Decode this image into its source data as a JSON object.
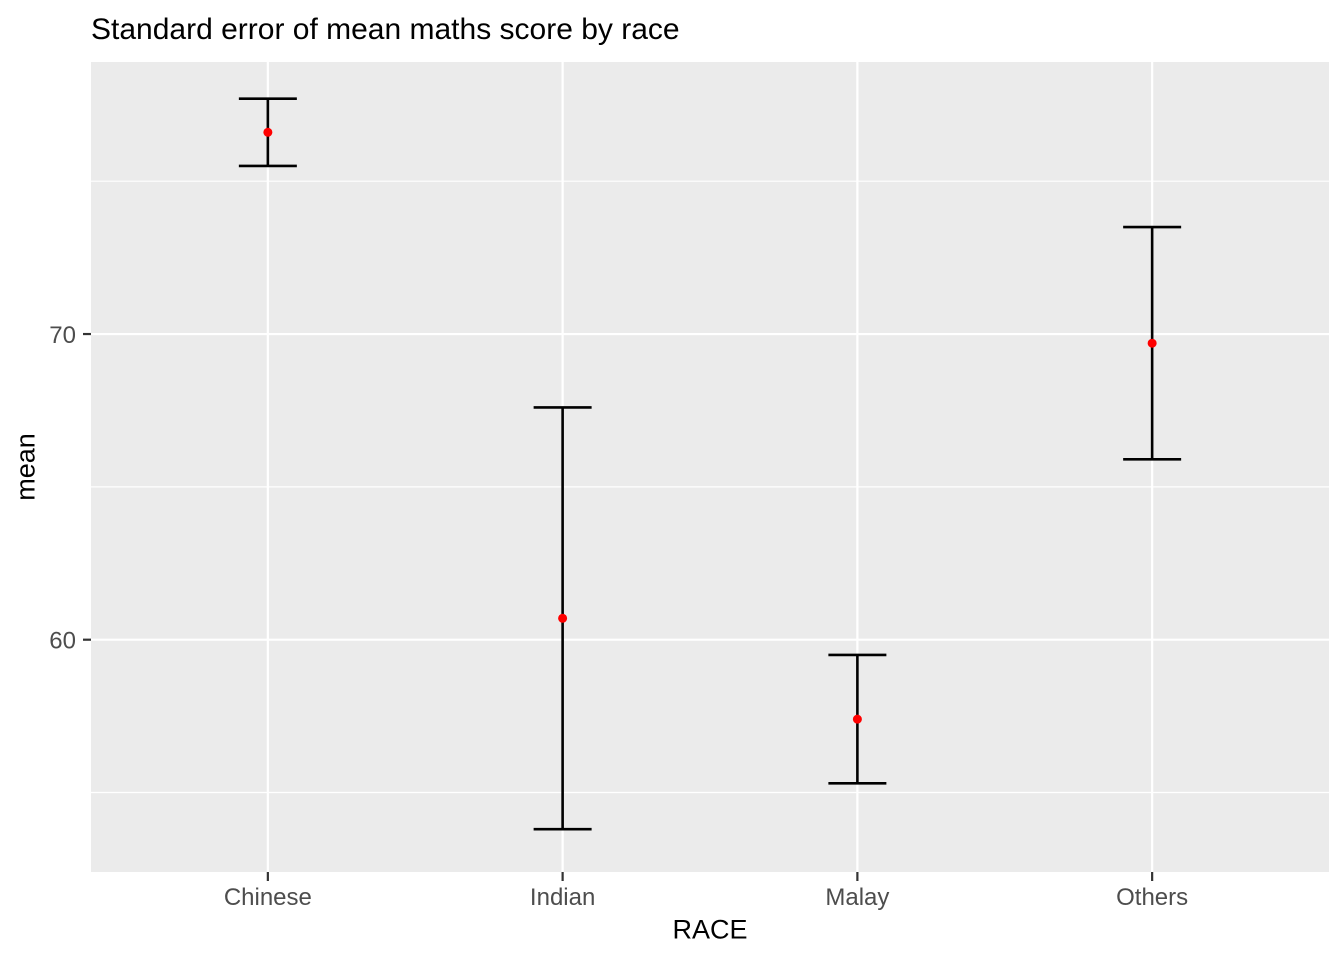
{
  "chart_data": {
    "type": "scatter",
    "subtype": "point-with-errorbar",
    "title": "Standard error of mean maths score by race",
    "xlabel": "RACE",
    "ylabel": "mean",
    "categories": [
      "Chinese",
      "Indian",
      "Malay",
      "Others"
    ],
    "series": [
      {
        "name": "mean maths score",
        "values": [
          76.6,
          60.7,
          57.4,
          69.7
        ],
        "se": [
          1.1,
          6.9,
          2.1,
          3.8
        ],
        "ymin": [
          75.5,
          53.8,
          55.3,
          65.9
        ],
        "ymax": [
          77.7,
          67.6,
          59.5,
          73.5
        ]
      }
    ],
    "ylim": [
      52.4,
      78.9
    ],
    "yticks": [
      60,
      70
    ],
    "yticks_minor": [
      55,
      65,
      75
    ],
    "grid": "major-and-minor, white on grey panel",
    "legend": "none",
    "style": {
      "point_color": "#FF0000",
      "errorbar_color": "#000000",
      "panel_bg": "#EBEBEB",
      "grid_color": "#FFFFFF",
      "tick_label_color": "#4D4D4D",
      "tick_mark_color": "#333333",
      "text_color": "#000000",
      "outer_bg": "#FFFFFF"
    }
  }
}
